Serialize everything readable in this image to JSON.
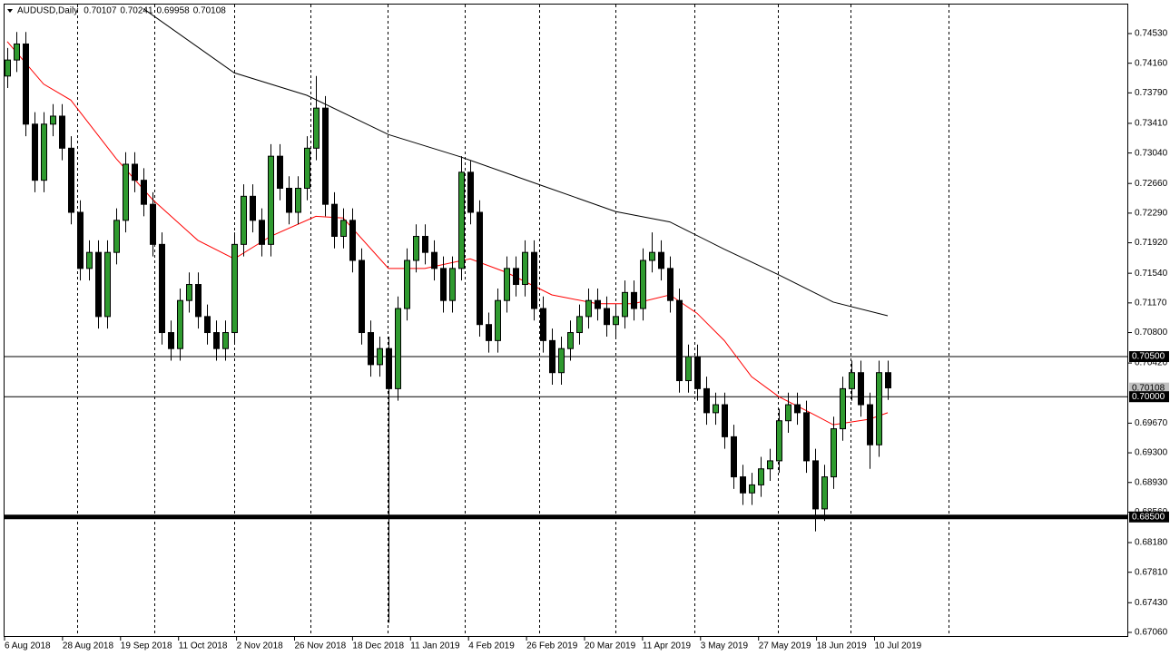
{
  "chart_data": {
    "type": "candlestick",
    "title": "AUDUSD,Daily",
    "header_values": [
      0.70107,
      0.70241,
      0.69958,
      0.70108
    ],
    "ylim": [
      0.67003,
      0.74892
    ],
    "yticks": [
      {
        "value": 0.7453,
        "label": "0.74530"
      },
      {
        "value": 0.7416,
        "label": "0.74160"
      },
      {
        "value": 0.7379,
        "label": "0.73790"
      },
      {
        "value": 0.7341,
        "label": "0.73410"
      },
      {
        "value": 0.7304,
        "label": "0.73040"
      },
      {
        "value": 0.7266,
        "label": "0.72660"
      },
      {
        "value": 0.7229,
        "label": "0.72290"
      },
      {
        "value": 0.7192,
        "label": "0.71920"
      },
      {
        "value": 0.7154,
        "label": "0.71540"
      },
      {
        "value": 0.7117,
        "label": "0.71170"
      },
      {
        "value": 0.708,
        "label": "0.70800"
      },
      {
        "value": 0.7042,
        "label": "0.70420"
      },
      {
        "value": 0.6967,
        "label": "0.69670"
      },
      {
        "value": 0.693,
        "label": "0.69300"
      },
      {
        "value": 0.6893,
        "label": "0.68930"
      },
      {
        "value": 0.6856,
        "label": "0.68560"
      },
      {
        "value": 0.6818,
        "label": "0.68180"
      },
      {
        "value": 0.6781,
        "label": "0.67810"
      },
      {
        "value": 0.6743,
        "label": "0.67430"
      },
      {
        "value": 0.6706,
        "label": "0.67060"
      }
    ],
    "categories": [
      "6 Aug 2018",
      "28 Aug 2018",
      "19 Sep 2018",
      "11 Oct 2018",
      "2 Nov 2018",
      "26 Nov 2018",
      "18 Dec 2018",
      "11 Jan 2019",
      "4 Feb 2019",
      "26 Feb 2019",
      "20 Mar 2019",
      "11 Apr 2019",
      "3 May 2019",
      "27 May 2019",
      "18 Jun 2019",
      "10 Jul 2019"
    ],
    "bull_color": "#2f9a2f",
    "bear_color": "#000000",
    "candles": [
      [
        0.74,
        0.7435,
        0.7385,
        0.742
      ],
      [
        0.742,
        0.7455,
        0.7405,
        0.744
      ],
      [
        0.744,
        0.7455,
        0.7325,
        0.734
      ],
      [
        0.734,
        0.7355,
        0.7255,
        0.727
      ],
      [
        0.727,
        0.7355,
        0.7255,
        0.734
      ],
      [
        0.734,
        0.7365,
        0.7325,
        0.735
      ],
      [
        0.735,
        0.7365,
        0.7295,
        0.731
      ],
      [
        0.731,
        0.7325,
        0.7215,
        0.723
      ],
      [
        0.723,
        0.7245,
        0.7145,
        0.716
      ],
      [
        0.716,
        0.7195,
        0.7145,
        0.718
      ],
      [
        0.718,
        0.7195,
        0.7085,
        0.71
      ],
      [
        0.71,
        0.7195,
        0.7085,
        0.718
      ],
      [
        0.718,
        0.7235,
        0.7165,
        0.722
      ],
      [
        0.722,
        0.7305,
        0.7205,
        0.729
      ],
      [
        0.729,
        0.7305,
        0.7255,
        0.727
      ],
      [
        0.727,
        0.7285,
        0.7225,
        0.724
      ],
      [
        0.724,
        0.7255,
        0.7175,
        0.719
      ],
      [
        0.719,
        0.7205,
        0.7065,
        0.708
      ],
      [
        0.708,
        0.7095,
        0.7045,
        0.706
      ],
      [
        0.706,
        0.7135,
        0.7045,
        0.712
      ],
      [
        0.712,
        0.7155,
        0.7105,
        0.714
      ],
      [
        0.714,
        0.7155,
        0.7085,
        0.71
      ],
      [
        0.71,
        0.7115,
        0.7065,
        0.708
      ],
      [
        0.708,
        0.7095,
        0.7045,
        0.706
      ],
      [
        0.706,
        0.7095,
        0.7045,
        0.708
      ],
      [
        0.708,
        0.7205,
        0.7065,
        0.719
      ],
      [
        0.719,
        0.7265,
        0.7175,
        0.725
      ],
      [
        0.725,
        0.7265,
        0.7205,
        0.722
      ],
      [
        0.722,
        0.7235,
        0.7175,
        0.719
      ],
      [
        0.719,
        0.7315,
        0.7175,
        0.73
      ],
      [
        0.73,
        0.7315,
        0.7245,
        0.726
      ],
      [
        0.726,
        0.7275,
        0.7215,
        0.723
      ],
      [
        0.723,
        0.7275,
        0.7215,
        0.726
      ],
      [
        0.726,
        0.7325,
        0.7245,
        0.731
      ],
      [
        0.731,
        0.74,
        0.7295,
        0.736
      ],
      [
        0.736,
        0.7375,
        0.7225,
        0.724
      ],
      [
        0.724,
        0.7255,
        0.7185,
        0.72
      ],
      [
        0.72,
        0.7235,
        0.7185,
        0.722
      ],
      [
        0.722,
        0.7235,
        0.7155,
        0.717
      ],
      [
        0.717,
        0.7185,
        0.7065,
        0.708
      ],
      [
        0.708,
        0.7095,
        0.7025,
        0.704
      ],
      [
        0.704,
        0.7075,
        0.7025,
        0.706
      ],
      [
        0.706,
        0.7075,
        0.6718,
        0.701
      ],
      [
        0.701,
        0.7125,
        0.6995,
        0.711
      ],
      [
        0.711,
        0.7185,
        0.7095,
        0.717
      ],
      [
        0.717,
        0.7215,
        0.7155,
        0.72
      ],
      [
        0.72,
        0.7215,
        0.7165,
        0.718
      ],
      [
        0.718,
        0.7195,
        0.7145,
        0.716
      ],
      [
        0.716,
        0.7175,
        0.7105,
        0.712
      ],
      [
        0.712,
        0.7175,
        0.7105,
        0.716
      ],
      [
        0.716,
        0.73,
        0.7145,
        0.728
      ],
      [
        0.728,
        0.7295,
        0.7215,
        0.723
      ],
      [
        0.723,
        0.7245,
        0.7075,
        0.709
      ],
      [
        0.709,
        0.7105,
        0.7055,
        0.707
      ],
      [
        0.707,
        0.7135,
        0.7055,
        0.712
      ],
      [
        0.712,
        0.7175,
        0.7105,
        0.716
      ],
      [
        0.716,
        0.7175,
        0.7125,
        0.714
      ],
      [
        0.714,
        0.7195,
        0.7125,
        0.718
      ],
      [
        0.718,
        0.7195,
        0.7095,
        0.711
      ],
      [
        0.711,
        0.7125,
        0.7055,
        0.707
      ],
      [
        0.707,
        0.7085,
        0.7015,
        0.703
      ],
      [
        0.703,
        0.7075,
        0.7015,
        0.706
      ],
      [
        0.706,
        0.7095,
        0.7045,
        0.708
      ],
      [
        0.708,
        0.7115,
        0.7065,
        0.71
      ],
      [
        0.71,
        0.7135,
        0.7085,
        0.712
      ],
      [
        0.712,
        0.7135,
        0.7095,
        0.711
      ],
      [
        0.711,
        0.7125,
        0.7075,
        0.709
      ],
      [
        0.709,
        0.7115,
        0.7075,
        0.71
      ],
      [
        0.71,
        0.7145,
        0.7085,
        0.713
      ],
      [
        0.713,
        0.7145,
        0.7095,
        0.711
      ],
      [
        0.711,
        0.7185,
        0.7095,
        0.717
      ],
      [
        0.717,
        0.7205,
        0.7155,
        0.718
      ],
      [
        0.718,
        0.7195,
        0.7145,
        0.716
      ],
      [
        0.716,
        0.7175,
        0.7105,
        0.712
      ],
      [
        0.712,
        0.7135,
        0.7005,
        0.702
      ],
      [
        0.702,
        0.7065,
        0.7005,
        0.705
      ],
      [
        0.705,
        0.7065,
        0.6995,
        0.701
      ],
      [
        0.701,
        0.7025,
        0.6965,
        0.698
      ],
      [
        0.698,
        0.7005,
        0.6965,
        0.699
      ],
      [
        0.699,
        0.7005,
        0.6935,
        0.695
      ],
      [
        0.695,
        0.6965,
        0.6885,
        0.69
      ],
      [
        0.69,
        0.6915,
        0.6865,
        0.688
      ],
      [
        0.688,
        0.6905,
        0.6865,
        0.689
      ],
      [
        0.689,
        0.6925,
        0.6875,
        0.691
      ],
      [
        0.691,
        0.6935,
        0.6895,
        0.692
      ],
      [
        0.692,
        0.6985,
        0.6905,
        0.697
      ],
      [
        0.697,
        0.7005,
        0.6955,
        0.699
      ],
      [
        0.699,
        0.7005,
        0.6965,
        0.698
      ],
      [
        0.698,
        0.6995,
        0.6905,
        0.692
      ],
      [
        0.692,
        0.6935,
        0.6832,
        0.686
      ],
      [
        0.686,
        0.6915,
        0.6845,
        0.69
      ],
      [
        0.69,
        0.6975,
        0.6885,
        0.696
      ],
      [
        0.696,
        0.7025,
        0.6945,
        0.701
      ],
      [
        0.701,
        0.7045,
        0.6995,
        0.703
      ],
      [
        0.703,
        0.7045,
        0.6975,
        0.699
      ],
      [
        0.699,
        0.7005,
        0.691,
        0.694
      ],
      [
        0.694,
        0.7045,
        0.6925,
        0.703
      ],
      [
        0.703,
        0.7045,
        0.6996,
        0.7011
      ]
    ],
    "moving_averages": [
      {
        "color": "#ff0000",
        "x": [
          0,
          4,
          7,
          12,
          16,
          21,
          25,
          29,
          34,
          37,
          42,
          46,
          51,
          55,
          60,
          65,
          69,
          73,
          76,
          79,
          82,
          85,
          89,
          91,
          95,
          97
        ],
        "values": [
          0.7443,
          0.739,
          0.737,
          0.7297,
          0.7246,
          0.7195,
          0.7172,
          0.72,
          0.7225,
          0.7223,
          0.716,
          0.716,
          0.7172,
          0.7155,
          0.7127,
          0.7116,
          0.7116,
          0.7127,
          0.7104,
          0.707,
          0.7025,
          0.7,
          0.6977,
          0.6965,
          0.6972,
          0.698
        ]
      },
      {
        "color": "#000000",
        "x": [
          15,
          25,
          33,
          42,
          50,
          59,
          67,
          73,
          79,
          85,
          91,
          97
        ],
        "values": [
          0.7484,
          0.7404,
          0.7376,
          0.7327,
          0.7299,
          0.7263,
          0.7231,
          0.7218,
          0.7184,
          0.7152,
          0.7118,
          0.7101
        ]
      }
    ],
    "levels": [
      {
        "value": 0.705,
        "label": "0.70500"
      },
      {
        "value": 0.7,
        "label": "0.70000"
      },
      {
        "value": 0.685,
        "label": "0.68500"
      }
    ],
    "current_price": 0.70108
  }
}
